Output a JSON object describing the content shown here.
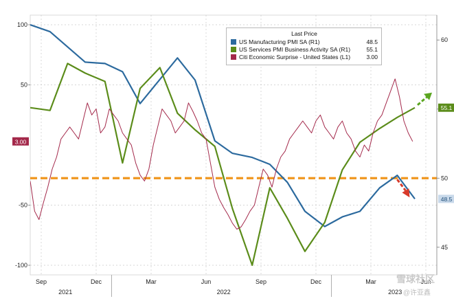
{
  "chart_data": {
    "type": "line",
    "legend": {
      "title": "Last Price",
      "placement": "top-right",
      "entries": [
        {
          "label": "US Manufacturing PMI SA  (R1)",
          "value": "48.5",
          "color": "#2c6a9e"
        },
        {
          "label": "US Services PMI Business Activity SA  (R1)",
          "value": "55.1",
          "color": "#5b8c1a"
        },
        {
          "label": "Citi Economic Surprise - United States  (L1)",
          "value": "3.00",
          "color": "#a3284a"
        }
      ]
    },
    "left_axis": {
      "ticks": [
        100,
        50,
        -50,
        -100
      ],
      "range": [
        -108,
        108
      ]
    },
    "right_axis": {
      "ticks": [
        60,
        55,
        50,
        45
      ],
      "range": [
        43.0,
        61.8
      ]
    },
    "x_axis": {
      "months": [
        "Sep",
        "Dec",
        "Mar",
        "Jun",
        "Sep",
        "Dec",
        "Mar",
        "Jun"
      ],
      "years": [
        "2021",
        "2022",
        "2023"
      ],
      "range": [
        2021.62,
        2023.47
      ]
    },
    "reference_line": {
      "value": 50,
      "axis": "right",
      "style": "dashed",
      "color": "#f0961e"
    },
    "labels": {
      "left_last": "3.00",
      "right_services": "55.1",
      "right_manufacturing": "48.5",
      "right_ref": "50"
    },
    "series": [
      {
        "name": "US Manufacturing PMI SA",
        "axis": "right",
        "color": "#2c6a9e",
        "x": [
          2021.62,
          2021.71,
          2021.87,
          2021.96,
          2022.04,
          2022.12,
          2022.29,
          2022.37,
          2022.46,
          2022.54,
          2022.63,
          2022.71,
          2022.79,
          2022.87,
          2022.96,
          2023.04,
          2023.12,
          2023.21,
          2023.29,
          2023.37
        ],
        "values": [
          61.1,
          60.6,
          58.4,
          58.3,
          57.7,
          55.4,
          58.7,
          57.1,
          52.7,
          51.8,
          51.5,
          51.0,
          49.7,
          47.6,
          46.5,
          47.2,
          47.6,
          49.3,
          50.2,
          48.5
        ]
      },
      {
        "name": "US Services PMI Business Activity SA",
        "axis": "right",
        "color": "#5b8c1a",
        "x": [
          2021.62,
          2021.71,
          2021.79,
          2021.87,
          2021.96,
          2022.04,
          2022.12,
          2022.21,
          2022.29,
          2022.37,
          2022.46,
          2022.54,
          2022.63,
          2022.71,
          2022.79,
          2022.87,
          2022.96,
          2023.04,
          2023.12,
          2023.21,
          2023.29,
          2023.37
        ],
        "values": [
          55.1,
          54.9,
          58.3,
          57.6,
          57.0,
          51.1,
          56.5,
          58.0,
          54.7,
          53.5,
          52.3,
          47.8,
          43.7,
          49.3,
          47.1,
          44.7,
          46.8,
          50.6,
          52.6,
          53.6,
          54.4,
          55.1
        ]
      },
      {
        "name": "Citi Economic Surprise - United States",
        "axis": "left",
        "color": "#a3284a",
        "x": [
          2021.62,
          2021.64,
          2021.66,
          2021.68,
          2021.7,
          2021.72,
          2021.74,
          2021.76,
          2021.78,
          2021.8,
          2021.82,
          2021.84,
          2021.86,
          2021.88,
          2021.9,
          2021.92,
          2021.94,
          2021.96,
          2021.98,
          2022.0,
          2022.02,
          2022.04,
          2022.06,
          2022.08,
          2022.1,
          2022.12,
          2022.14,
          2022.16,
          2022.18,
          2022.2,
          2022.22,
          2022.24,
          2022.26,
          2022.28,
          2022.3,
          2022.32,
          2022.34,
          2022.36,
          2022.38,
          2022.4,
          2022.42,
          2022.44,
          2022.46,
          2022.48,
          2022.5,
          2022.52,
          2022.54,
          2022.56,
          2022.58,
          2022.6,
          2022.62,
          2022.64,
          2022.66,
          2022.68,
          2022.7,
          2022.72,
          2022.74,
          2022.76,
          2022.78,
          2022.8,
          2022.82,
          2022.84,
          2022.86,
          2022.88,
          2022.9,
          2022.92,
          2022.94,
          2022.96,
          2022.98,
          2023.0,
          2023.02,
          2023.04,
          2023.06,
          2023.08,
          2023.1,
          2023.12,
          2023.14,
          2023.16,
          2023.18,
          2023.2,
          2023.22,
          2023.24,
          2023.26,
          2023.28,
          2023.3,
          2023.32,
          2023.34,
          2023.36
        ],
        "values": [
          -30,
          -55,
          -62,
          -48,
          -35,
          -20,
          -10,
          5,
          10,
          15,
          10,
          5,
          20,
          35,
          25,
          30,
          10,
          15,
          30,
          25,
          20,
          10,
          5,
          0,
          -15,
          -25,
          -30,
          -20,
          0,
          15,
          30,
          25,
          20,
          10,
          15,
          20,
          35,
          28,
          20,
          10,
          5,
          -15,
          -35,
          -45,
          -52,
          -58,
          -65,
          -70,
          -68,
          -62,
          -55,
          -50,
          -35,
          -20,
          -25,
          -35,
          -20,
          -10,
          -5,
          5,
          10,
          15,
          20,
          15,
          10,
          20,
          25,
          15,
          10,
          5,
          15,
          20,
          10,
          5,
          -5,
          -10,
          0,
          -5,
          10,
          20,
          25,
          35,
          45,
          55,
          40,
          20,
          10,
          3
        ]
      }
    ]
  },
  "watermark": {
    "main": "雪球社区",
    "sub": "@许亚鑫"
  }
}
